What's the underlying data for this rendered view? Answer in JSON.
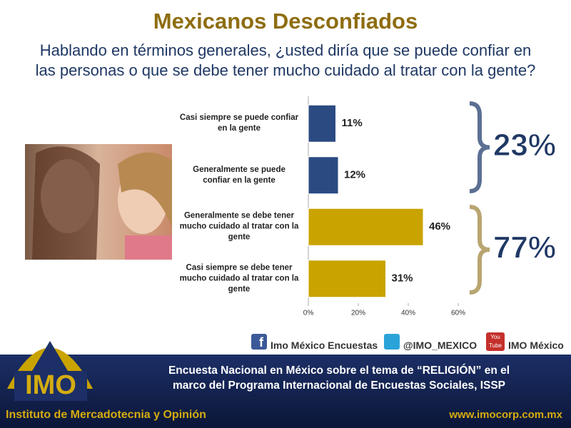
{
  "title": "Mexicanos Desconfiados",
  "subtitle": [
    "Hablando en términos generales, ¿usted diría que se puede confiar en",
    "las personas o que se debe tener mucho cuidado al tratar con la gente?"
  ],
  "chart_data": {
    "type": "bar",
    "orientation": "horizontal",
    "categories": [
      "Casi siempre se puede confiar en la gente",
      "Generalmente se puede confiar en la gente",
      "Generalmente se debe tener mucho cuidado al tratar con la gente",
      "Casi siempre se debe tener mucho cuidado al tratar con la gente"
    ],
    "values": [
      11,
      12,
      46,
      31
    ],
    "value_labels": [
      "11%",
      "12%",
      "46%",
      "31%"
    ],
    "colors": [
      "#2b4a82",
      "#2b4a82",
      "#c9a300",
      "#c9a300"
    ],
    "xlim": [
      0,
      60
    ],
    "xticks": [
      {
        "value": 0,
        "label": "0%"
      },
      {
        "value": 20,
        "label": "20%"
      },
      {
        "value": 40,
        "label": "40%"
      },
      {
        "value": 60,
        "label": "60%"
      }
    ],
    "annotations": [
      {
        "label": "23%",
        "color": "#5b6f94"
      },
      {
        "label": "77%",
        "color": "#b8a570"
      }
    ]
  },
  "social": [
    "Imo México Encuestas",
    "@IMO_MEXICO",
    "IMO México"
  ],
  "youtube_icon": [
    "You",
    "Tube"
  ],
  "logo": "IMO",
  "footer": {
    "survey": [
      "Encuesta Nacional en México sobre el tema de “RELIGIÓN” en el",
      "marco del Programa Internacional de Encuestas Sociales, ISSP"
    ],
    "institute": "Instituto de Mercadotecnia y Opinión",
    "website": "www.imocorp.com.mx"
  }
}
